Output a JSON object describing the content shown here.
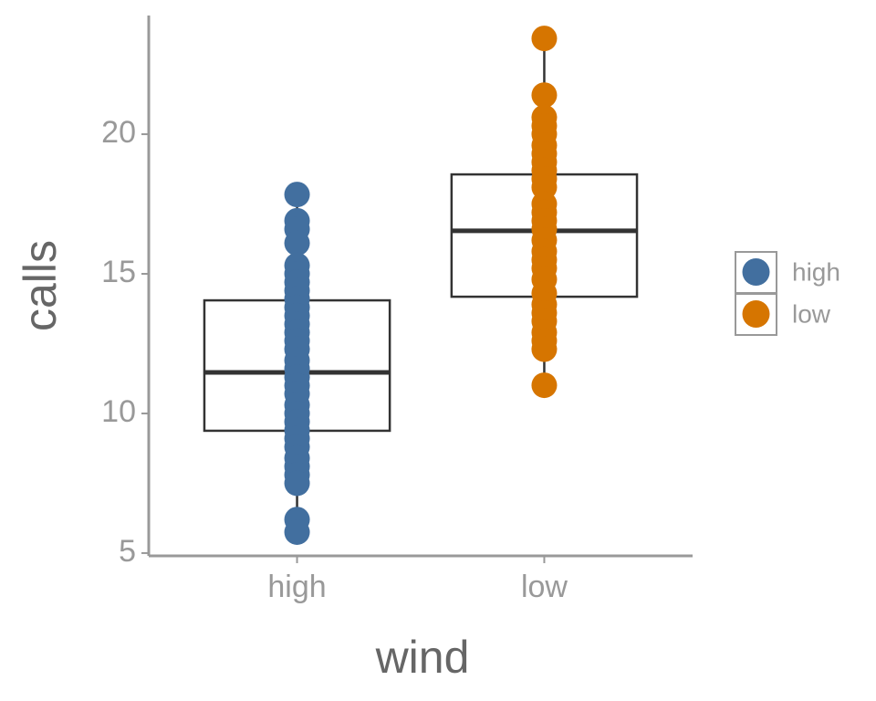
{
  "chart_data": {
    "type": "box",
    "x_label": "wind",
    "y_label": "calls",
    "categories": [
      "high",
      "low"
    ],
    "ylim": [
      4.9,
      24.25
    ],
    "yticks": [
      5,
      10,
      15,
      20
    ],
    "boxes": [
      {
        "min": 5.75,
        "q1": 9.38,
        "median": 11.47,
        "q3": 14.05,
        "max": 17.84
      },
      {
        "min": 11.01,
        "q1": 14.18,
        "median": 16.54,
        "q3": 18.56,
        "max": 23.43
      }
    ],
    "series": [
      {
        "name": "high",
        "color": "#426f9f",
        "values": [
          17.84,
          16.9,
          16.6,
          16.1,
          15.3,
          15.0,
          14.7,
          14.4,
          14.1,
          13.8,
          13.5,
          13.2,
          12.9,
          12.6,
          12.3,
          11.9,
          11.6,
          11.3,
          11.0,
          10.7,
          10.3,
          10.0,
          9.7,
          9.4,
          9.1,
          8.8,
          8.4,
          8.1,
          7.8,
          7.5,
          6.2,
          5.75
        ]
      },
      {
        "name": "low",
        "color": "#d67500",
        "values": [
          23.43,
          21.4,
          20.6,
          20.3,
          20.0,
          19.6,
          19.3,
          19.0,
          18.7,
          18.4,
          18.1,
          17.5,
          17.2,
          16.9,
          16.6,
          16.2,
          15.8,
          15.5,
          15.2,
          14.8,
          14.3,
          13.9,
          13.6,
          13.3,
          12.9,
          12.6,
          12.3,
          11.01
        ]
      }
    ]
  }
}
